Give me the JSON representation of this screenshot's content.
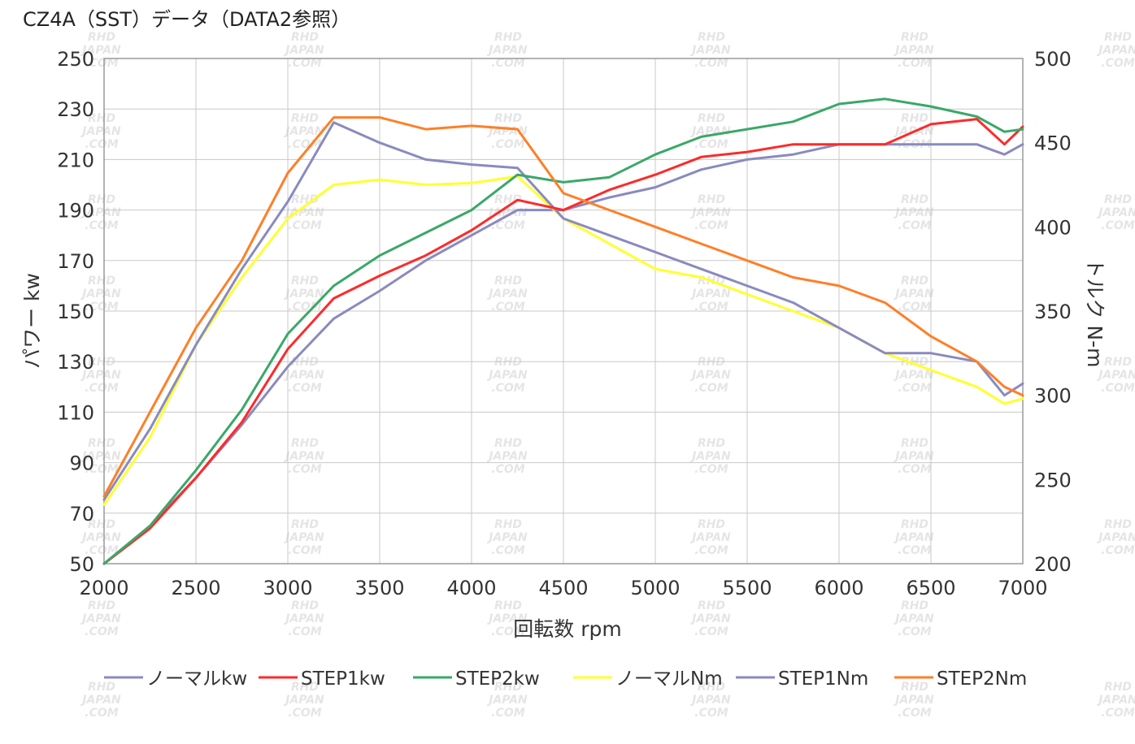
{
  "title": "CZ4A（SST）データ（DATA2参照）",
  "colors": {
    "normal_kw": "#8a8ac0",
    "step1_kw": "#ff2a2a",
    "step2_kw": "#3aa868",
    "normal_nm": "#ffff30",
    "step1_nm": "#8a8ac0",
    "step2_nm": "#ff7f27"
  },
  "watermark": [
    "RHD",
    "JAPAN",
    ".COM"
  ],
  "chart_data": {
    "type": "line",
    "xlabel": "回転数 rpm",
    "ylabel_left": "パワー kw",
    "ylabel_right": "トルク N-m",
    "xlim": [
      2000,
      7000
    ],
    "ylim_left": [
      50,
      250
    ],
    "ylim_right": [
      200,
      500
    ],
    "x_ticks": [
      "2000",
      "2500",
      "3000",
      "3500",
      "4000",
      "4500",
      "5000",
      "5500",
      "6000",
      "6500",
      "7000"
    ],
    "y_ticks_left": [
      "50",
      "70",
      "90",
      "110",
      "130",
      "150",
      "170",
      "190",
      "210",
      "230",
      "250"
    ],
    "y_ticks_right": [
      "200",
      "250",
      "300",
      "350",
      "400",
      "450",
      "500"
    ],
    "grid": true,
    "legend_position": "bottom",
    "x": [
      2000,
      2250,
      2500,
      2750,
      3000,
      3250,
      3500,
      3750,
      4000,
      4250,
      4500,
      4750,
      5000,
      5250,
      5500,
      5750,
      6000,
      6250,
      6500,
      6750,
      6900,
      7000
    ],
    "series": [
      {
        "name": "ノーマルkw",
        "axis": "left",
        "color_key": "normal_kw",
        "values": [
          50,
          65,
          84,
          105,
          128,
          147,
          158,
          170,
          180,
          190,
          190,
          195,
          199,
          206,
          210,
          212,
          216,
          216,
          216,
          216,
          212,
          216
        ]
      },
      {
        "name": "STEP1kw",
        "axis": "left",
        "color_key": "step1_kw",
        "values": [
          50,
          64,
          84,
          106,
          135,
          155,
          164,
          172,
          182,
          194,
          190,
          198,
          204,
          211,
          213,
          216,
          216,
          216,
          224,
          226,
          216,
          223
        ]
      },
      {
        "name": "STEP2kw",
        "axis": "left",
        "color_key": "step2_kw",
        "values": [
          50,
          65,
          87,
          111,
          141,
          160,
          172,
          181,
          190,
          204,
          201,
          203,
          212,
          219,
          222,
          225,
          232,
          234,
          231,
          227,
          221,
          222
        ]
      },
      {
        "name": "ノーマルNm",
        "axis": "right",
        "color_key": "normal_nm",
        "values": [
          235,
          275,
          330,
          370,
          405,
          425,
          428,
          425,
          426,
          430,
          405,
          390,
          375,
          370,
          360,
          350,
          340,
          325,
          315,
          305,
          295,
          298
        ]
      },
      {
        "name": "STEP1Nm",
        "axis": "right",
        "color_key": "step1_nm",
        "values": [
          238,
          280,
          330,
          375,
          415,
          462,
          450,
          440,
          437,
          435,
          405,
          395,
          385,
          375,
          365,
          355,
          340,
          325,
          325,
          320,
          300,
          307
        ]
      },
      {
        "name": "STEP2Nm",
        "axis": "right",
        "color_key": "step2_nm",
        "values": [
          240,
          290,
          340,
          380,
          432,
          465,
          465,
          458,
          460,
          458,
          420,
          410,
          400,
          390,
          380,
          370,
          365,
          355,
          335,
          320,
          305,
          300
        ]
      }
    ]
  }
}
